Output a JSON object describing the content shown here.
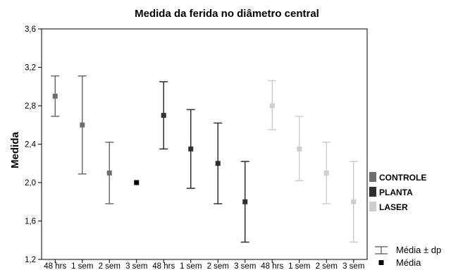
{
  "chart_data": {
    "type": "scatter",
    "title": "Medida da ferida no diâmetro central",
    "xlabel": "",
    "ylabel": "Medida",
    "ylim": [
      1.2,
      3.6
    ],
    "yticks": [
      "1,2",
      "1,6",
      "2,0",
      "2,4",
      "2,8",
      "3,2",
      "3,6"
    ],
    "categories": [
      "48 hrs",
      "1 sem",
      "2 sem",
      "3 sem",
      "48 hrs",
      "1 sem",
      "2 sem",
      "3 sem",
      "48 hrs",
      "1 sem",
      "2 sem",
      "3 sem"
    ],
    "grid": false,
    "legend_position": "right",
    "series": [
      {
        "name": "CONTROLE",
        "color": "#6e6e6e",
        "points": [
          {
            "x": "48 hrs",
            "mean": 2.9,
            "low": 2.69,
            "high": 3.11
          },
          {
            "x": "1 sem",
            "mean": 2.6,
            "low": 2.09,
            "high": 3.11
          },
          {
            "x": "2 sem",
            "mean": 2.1,
            "low": 1.78,
            "high": 2.42
          },
          {
            "x": "3 sem",
            "mean": 2.0,
            "low": 2.0,
            "high": 2.0
          }
        ]
      },
      {
        "name": "PLANTA",
        "color": "#2f2f2f",
        "points": [
          {
            "x": "48 hrs",
            "mean": 2.7,
            "low": 2.35,
            "high": 3.05
          },
          {
            "x": "1 sem",
            "mean": 2.35,
            "low": 1.94,
            "high": 2.76
          },
          {
            "x": "2 sem",
            "mean": 2.2,
            "low": 1.78,
            "high": 2.62
          },
          {
            "x": "3 sem",
            "mean": 1.8,
            "low": 1.38,
            "high": 2.22
          }
        ]
      },
      {
        "name": "LASER",
        "color": "#cfcfcf",
        "points": [
          {
            "x": "48 hrs",
            "mean": 2.8,
            "low": 2.55,
            "high": 3.06
          },
          {
            "x": "1 sem",
            "mean": 2.35,
            "low": 2.02,
            "high": 2.69
          },
          {
            "x": "2 sem",
            "mean": 2.1,
            "low": 1.78,
            "high": 2.42
          },
          {
            "x": "3 sem",
            "mean": 1.8,
            "low": 1.38,
            "high": 2.22
          }
        ]
      }
    ],
    "legend_stats": {
      "errorbar_label": "Média ± dp",
      "point_label": "Média",
      "point_color": "#000000"
    }
  }
}
